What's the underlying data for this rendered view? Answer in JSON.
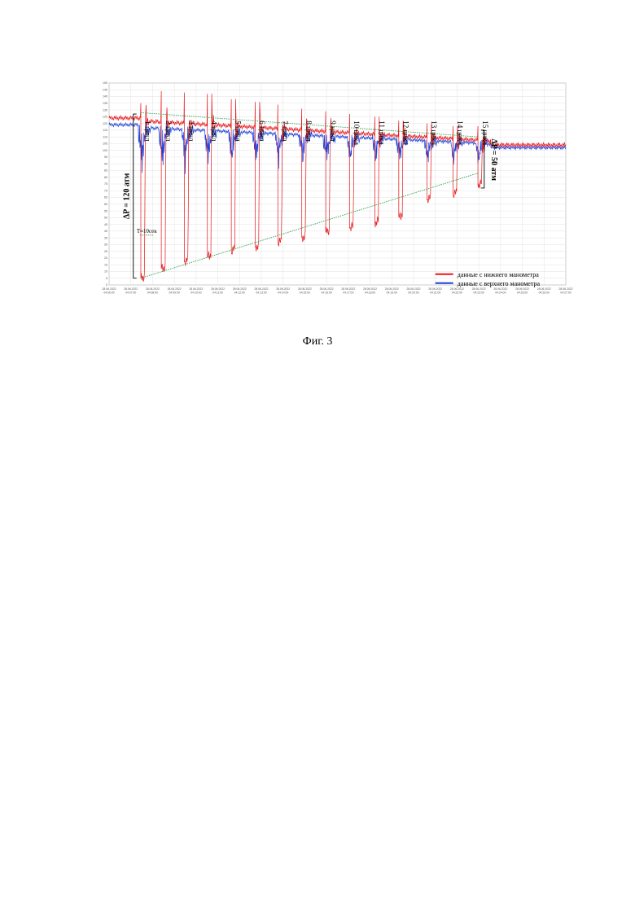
{
  "figure": {
    "caption": "Фиг. 3"
  },
  "chart_data": {
    "type": "line",
    "title": "",
    "xlabel": "",
    "ylabel": "",
    "ylim": [
      0,
      150
    ],
    "grid": true,
    "legend_placement": "bottom-right",
    "y_ticks": [
      0,
      5,
      10,
      15,
      20,
      25,
      30,
      35,
      40,
      45,
      50,
      55,
      60,
      65,
      70,
      75,
      80,
      85,
      90,
      95,
      100,
      105,
      110,
      115,
      120,
      125,
      130,
      135,
      140,
      145,
      150
    ],
    "x_tick_labels": [
      {
        "date": "28.06.2022",
        "time": "04:06:00"
      },
      {
        "date": "28.06.2022",
        "time": "04:07:00"
      },
      {
        "date": "28.06.2022",
        "time": "04:08:00"
      },
      {
        "date": "28.06.2022",
        "time": "04:09:00"
      },
      {
        "date": "28.06.2022",
        "time": "04:10:00"
      },
      {
        "date": "28.06.2022",
        "time": "04:11:00"
      },
      {
        "date": "28.06.2022",
        "time": "04:12:00"
      },
      {
        "date": "28.06.2022",
        "time": "04:13:00"
      },
      {
        "date": "28.06.2022",
        "time": "04:14:00"
      },
      {
        "date": "28.06.2022",
        "time": "04:15:00"
      },
      {
        "date": "28.06.2022",
        "time": "04:16:00"
      },
      {
        "date": "28.06.2022",
        "time": "04:17:00"
      },
      {
        "date": "28.06.2022",
        "time": "04:18:00"
      },
      {
        "date": "28.06.2022",
        "time": "04:19:00"
      },
      {
        "date": "28.06.2022",
        "time": "04:20:00"
      },
      {
        "date": "28.06.2022",
        "time": "04:21:00"
      },
      {
        "date": "28.06.2022",
        "time": "04:22:00"
      },
      {
        "date": "28.06.2022",
        "time": "04:23:00"
      },
      {
        "date": "28.06.2022",
        "time": "04:24:00"
      },
      {
        "date": "28.06.2022",
        "time": "04:25:00"
      },
      {
        "date": "28.06.2022",
        "time": "04:26:00"
      },
      {
        "date": "28.06.2022",
        "time": "04:27:00"
      }
    ],
    "x_range_min": [
      0,
      21
    ],
    "series": [
      {
        "name": "данные с нижнего манометра",
        "color": "#e8161b",
        "baseline_start": 124,
        "baseline_end": 104,
        "cycle_times_min": [
          1.45,
          2.4,
          3.45,
          4.5,
          5.6,
          6.7,
          7.75,
          8.85,
          9.95,
          11.05,
          12.2,
          13.3,
          14.6,
          15.8,
          16.95
        ],
        "cycle_minimums": [
          5,
          12,
          17,
          21,
          25,
          28,
          31,
          35,
          39,
          42,
          46,
          51,
          63,
          67,
          74
        ],
        "cycle_peaks": [
          135,
          144,
          143,
          142,
          138,
          136,
          134,
          131,
          129,
          127,
          125,
          122,
          120,
          118,
          118
        ]
      },
      {
        "name": "данные с верхнего манометра",
        "color": "#1a3fd8",
        "baseline_start": 119,
        "baseline_end": 102,
        "cycle_times_min": [
          1.45,
          2.4,
          3.45,
          4.5,
          5.6,
          6.7,
          7.75,
          8.85,
          9.95,
          11.05,
          12.2,
          13.3,
          14.6,
          15.8,
          16.95
        ],
        "cycle_dips": [
          82,
          87,
          90,
          92,
          94,
          96,
          97,
          98,
          99,
          100,
          101,
          102,
          102,
          103,
          104
        ]
      }
    ],
    "trend_lines_color": "#2aa34a",
    "upper_trend": {
      "start": [
        1.45,
        128
      ],
      "end": [
        16.95,
        110
      ]
    },
    "lower_trend": {
      "start": [
        1.45,
        5
      ],
      "end": [
        16.95,
        83
      ]
    },
    "annotations": {
      "delta_left": "ΔP = 120 атм",
      "delta_right": "ΔP = 50 атм",
      "period": "T≈10сек",
      "cycle_labels": [
        "1 цикл",
        "2 цикл",
        "3 цикл",
        "4 цикл",
        "5 цикл",
        "6 цикл",
        "7 цикл",
        "8 цикл",
        "9 цикл",
        "10 цикл",
        "11 цикл",
        "12 цикл",
        "13 цикл",
        "14 цикл",
        "15 цикл"
      ]
    }
  }
}
